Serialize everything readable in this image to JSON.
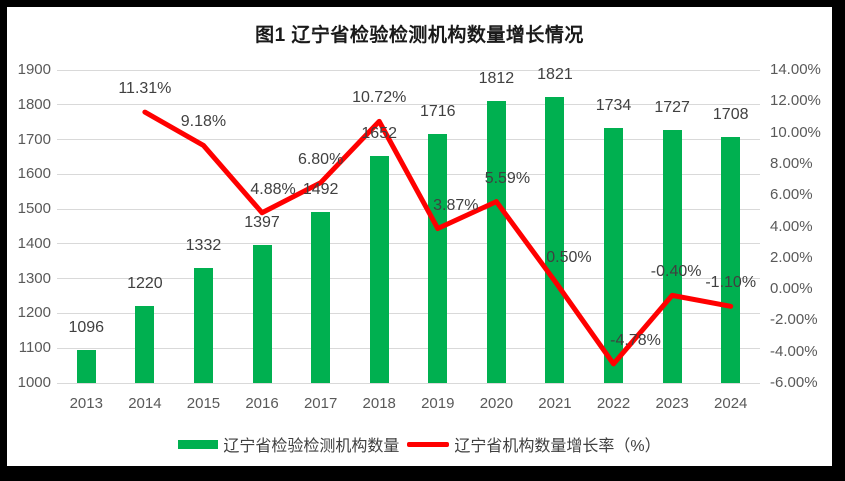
{
  "title": "图1 辽宁省检验检测机构数量增长情况",
  "chart_data": {
    "type": "bar+line",
    "categories": [
      "2013",
      "2014",
      "2015",
      "2016",
      "2017",
      "2018",
      "2019",
      "2020",
      "2021",
      "2022",
      "2023",
      "2024"
    ],
    "series": [
      {
        "name": "辽宁省检验检测机构数量",
        "type": "bar",
        "axis": "left",
        "values": [
          1096,
          1220,
          1332,
          1397,
          1492,
          1652,
          1716,
          1812,
          1821,
          1734,
          1727,
          1708
        ],
        "labels": [
          "1096",
          "1220",
          "1332",
          "1397",
          "1492",
          "1652",
          "1716",
          "1812",
          "1821",
          "1734",
          "1727",
          "1708"
        ]
      },
      {
        "name": "辽宁省机构数量增长率（%）",
        "type": "line",
        "axis": "right",
        "values": [
          null,
          11.31,
          9.18,
          4.88,
          6.8,
          10.72,
          3.87,
          5.59,
          0.5,
          -4.78,
          -0.4,
          -1.1
        ],
        "labels": [
          null,
          "11.31%",
          "9.18%",
          "4.88%",
          "6.80%",
          "10.72%",
          "3.87%",
          "5.59%",
          "0.50%",
          "-4.78%",
          "-0.40%",
          "-1.10%"
        ]
      }
    ],
    "left_axis": {
      "min": 1000,
      "max": 1900,
      "ticks": [
        "1900",
        "1800",
        "1700",
        "1600",
        "1500",
        "1400",
        "1300",
        "1200",
        "1100",
        "1000"
      ]
    },
    "right_axis": {
      "min": -6,
      "max": 14,
      "ticks": [
        "14.00%",
        "12.00%",
        "10.00%",
        "8.00%",
        "6.00%",
        "4.00%",
        "2.00%",
        "0.00%",
        "-2.00%",
        "-4.00%",
        "-6.00%"
      ]
    },
    "legend": [
      {
        "label": "辽宁省检验检测机构数量",
        "swatch": "bar"
      },
      {
        "label": "辽宁省机构数量增长率（%）",
        "swatch": "line"
      }
    ],
    "grid": true,
    "legend_position": "bottom",
    "label_dx": [
      0,
      0,
      0,
      11,
      0,
      0,
      18,
      11,
      14,
      22,
      4,
      0
    ]
  },
  "colors": {
    "bar": "#00B050",
    "line": "#FF0000",
    "gridline": "#D9D9D9",
    "axis_text": "#595959",
    "data_label": "#404040",
    "title_text": "#1A1A1A",
    "frame": "#000000",
    "background": "#FFFFFF"
  }
}
